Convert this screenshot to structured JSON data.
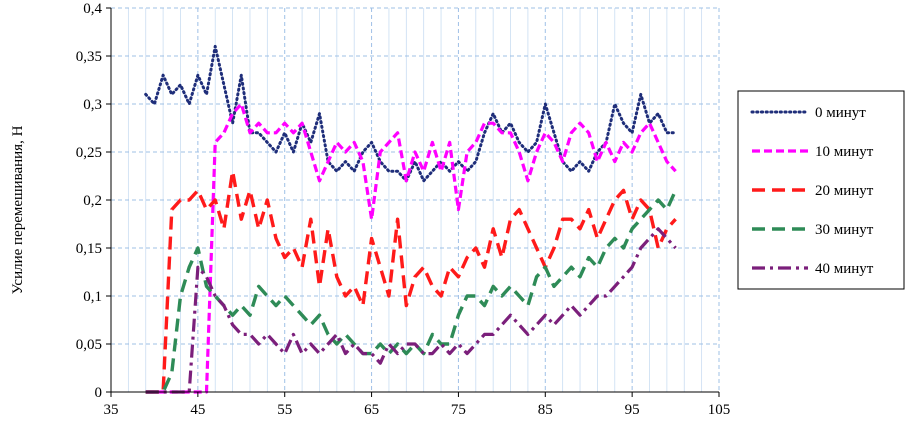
{
  "chart_data": {
    "type": "line",
    "title": "",
    "xlabel": "",
    "ylabel": "Усилие перемешивания, Н",
    "xlim": [
      35,
      105
    ],
    "ylim": [
      0,
      0.4
    ],
    "x_ticks": [
      35,
      45,
      55,
      65,
      75,
      85,
      95,
      105
    ],
    "x_tick_labels": [
      "35",
      "45",
      "55",
      "65",
      "75",
      "85",
      "95",
      "105"
    ],
    "y_ticks": [
      0,
      0.05,
      0.1,
      0.15,
      0.2,
      0.25,
      0.3,
      0.35,
      0.4
    ],
    "y_tick_labels": [
      "0",
      "0,05",
      "0,1",
      "0,15",
      "0,2",
      "0,25",
      "0,3",
      "0,35",
      "0,4"
    ],
    "grid": true,
    "legend_position": "right",
    "series": [
      {
        "name": "0 минут",
        "color": "#1F2E7A",
        "dash": "dotted",
        "x": [
          39,
          40,
          41,
          42,
          43,
          44,
          45,
          46,
          47,
          48,
          49,
          50,
          51,
          52,
          53,
          54,
          55,
          56,
          57,
          58,
          59,
          60,
          61,
          62,
          63,
          64,
          65,
          66,
          67,
          68,
          69,
          70,
          71,
          72,
          73,
          74,
          75,
          76,
          77,
          78,
          79,
          80,
          81,
          82,
          83,
          84,
          85,
          86,
          87,
          88,
          89,
          90,
          91,
          92,
          93,
          94,
          95,
          96,
          97,
          98,
          99,
          100
        ],
        "y": [
          0.31,
          0.3,
          0.33,
          0.31,
          0.32,
          0.3,
          0.33,
          0.31,
          0.36,
          0.32,
          0.28,
          0.33,
          0.27,
          0.27,
          0.26,
          0.25,
          0.27,
          0.25,
          0.28,
          0.26,
          0.29,
          0.24,
          0.23,
          0.24,
          0.23,
          0.25,
          0.26,
          0.24,
          0.23,
          0.23,
          0.22,
          0.24,
          0.22,
          0.23,
          0.24,
          0.23,
          0.24,
          0.23,
          0.24,
          0.27,
          0.29,
          0.27,
          0.28,
          0.26,
          0.25,
          0.26,
          0.3,
          0.27,
          0.24,
          0.23,
          0.24,
          0.23,
          0.25,
          0.26,
          0.3,
          0.28,
          0.27,
          0.31,
          0.28,
          0.29,
          0.27,
          0.27
        ]
      },
      {
        "name": "10 минут",
        "color": "#FF00FF",
        "dash": "dash",
        "x": [
          39,
          40,
          41,
          42,
          43,
          44,
          45,
          46,
          47,
          48,
          49,
          50,
          51,
          52,
          53,
          54,
          55,
          56,
          57,
          58,
          59,
          60,
          61,
          62,
          63,
          64,
          65,
          66,
          67,
          68,
          69,
          70,
          71,
          72,
          73,
          74,
          75,
          76,
          77,
          78,
          79,
          80,
          81,
          82,
          83,
          84,
          85,
          86,
          87,
          88,
          89,
          90,
          91,
          92,
          93,
          94,
          95,
          96,
          97,
          98,
          99,
          100
        ],
        "y": [
          0.0,
          0.0,
          0.0,
          0.0,
          0.0,
          0.0,
          0.0,
          0.0,
          0.26,
          0.27,
          0.29,
          0.3,
          0.27,
          0.28,
          0.27,
          0.27,
          0.28,
          0.27,
          0.28,
          0.25,
          0.22,
          0.24,
          0.26,
          0.25,
          0.26,
          0.24,
          0.18,
          0.25,
          0.26,
          0.27,
          0.22,
          0.25,
          0.23,
          0.26,
          0.23,
          0.26,
          0.19,
          0.25,
          0.26,
          0.28,
          0.28,
          0.27,
          0.27,
          0.25,
          0.22,
          0.25,
          0.27,
          0.26,
          0.24,
          0.27,
          0.28,
          0.27,
          0.24,
          0.26,
          0.24,
          0.26,
          0.25,
          0.27,
          0.28,
          0.26,
          0.24,
          0.23
        ]
      },
      {
        "name": "20 минут",
        "color": "#FF1A1A",
        "dash": "longdash",
        "x": [
          39,
          40,
          41,
          42,
          43,
          44,
          45,
          46,
          47,
          48,
          49,
          50,
          51,
          52,
          53,
          54,
          55,
          56,
          57,
          58,
          59,
          60,
          61,
          62,
          63,
          64,
          65,
          66,
          67,
          68,
          69,
          70,
          71,
          72,
          73,
          74,
          75,
          76,
          77,
          78,
          79,
          80,
          81,
          82,
          83,
          84,
          85,
          86,
          87,
          88,
          89,
          90,
          91,
          92,
          93,
          94,
          95,
          96,
          97,
          98,
          99,
          100
        ],
        "y": [
          0.0,
          0.0,
          0.0,
          0.19,
          0.2,
          0.2,
          0.21,
          0.19,
          0.2,
          0.17,
          0.23,
          0.18,
          0.21,
          0.17,
          0.2,
          0.16,
          0.14,
          0.15,
          0.13,
          0.18,
          0.11,
          0.17,
          0.12,
          0.1,
          0.11,
          0.09,
          0.16,
          0.13,
          0.1,
          0.18,
          0.09,
          0.12,
          0.13,
          0.11,
          0.1,
          0.13,
          0.12,
          0.14,
          0.15,
          0.13,
          0.17,
          0.14,
          0.18,
          0.19,
          0.17,
          0.15,
          0.13,
          0.15,
          0.18,
          0.18,
          0.17,
          0.19,
          0.16,
          0.18,
          0.2,
          0.21,
          0.18,
          0.2,
          0.19,
          0.15,
          0.17,
          0.18
        ]
      },
      {
        "name": "30 минут",
        "color": "#2E8B57",
        "dash": "longdash",
        "x": [
          39,
          40,
          41,
          42,
          43,
          44,
          45,
          46,
          47,
          48,
          49,
          50,
          51,
          52,
          53,
          54,
          55,
          56,
          57,
          58,
          59,
          60,
          61,
          62,
          63,
          64,
          65,
          66,
          67,
          68,
          69,
          70,
          71,
          72,
          73,
          74,
          75,
          76,
          77,
          78,
          79,
          80,
          81,
          82,
          83,
          84,
          85,
          86,
          87,
          88,
          89,
          90,
          91,
          92,
          93,
          94,
          95,
          96,
          97,
          98,
          99,
          100
        ],
        "y": [
          0.0,
          0.0,
          0.0,
          0.02,
          0.1,
          0.13,
          0.15,
          0.11,
          0.1,
          0.09,
          0.08,
          0.09,
          0.08,
          0.11,
          0.1,
          0.09,
          0.1,
          0.09,
          0.08,
          0.07,
          0.08,
          0.06,
          0.05,
          0.06,
          0.05,
          0.04,
          0.04,
          0.05,
          0.04,
          0.05,
          0.04,
          0.05,
          0.04,
          0.06,
          0.05,
          0.05,
          0.08,
          0.1,
          0.1,
          0.09,
          0.11,
          0.1,
          0.11,
          0.1,
          0.09,
          0.12,
          0.13,
          0.11,
          0.12,
          0.13,
          0.12,
          0.14,
          0.13,
          0.15,
          0.16,
          0.15,
          0.17,
          0.18,
          0.19,
          0.2,
          0.19,
          0.21
        ]
      },
      {
        "name": "40 минут",
        "color": "#7B1F7B",
        "dash": "dashdot",
        "x": [
          39,
          40,
          41,
          42,
          43,
          44,
          45,
          46,
          47,
          48,
          49,
          50,
          51,
          52,
          53,
          54,
          55,
          56,
          57,
          58,
          59,
          60,
          61,
          62,
          63,
          64,
          65,
          66,
          67,
          68,
          69,
          70,
          71,
          72,
          73,
          74,
          75,
          76,
          77,
          78,
          79,
          80,
          81,
          82,
          83,
          84,
          85,
          86,
          87,
          88,
          89,
          90,
          91,
          92,
          93,
          94,
          95,
          96,
          97,
          98,
          99,
          100
        ],
        "y": [
          0.0,
          0.0,
          0.0,
          0.0,
          0.0,
          0.0,
          0.13,
          0.12,
          0.1,
          0.09,
          0.07,
          0.06,
          0.06,
          0.05,
          0.06,
          0.05,
          0.04,
          0.06,
          0.04,
          0.05,
          0.04,
          0.05,
          0.06,
          0.04,
          0.05,
          0.04,
          0.04,
          0.03,
          0.05,
          0.04,
          0.05,
          0.05,
          0.04,
          0.04,
          0.05,
          0.04,
          0.05,
          0.04,
          0.05,
          0.06,
          0.06,
          0.07,
          0.08,
          0.07,
          0.06,
          0.07,
          0.08,
          0.07,
          0.08,
          0.09,
          0.08,
          0.09,
          0.1,
          0.1,
          0.11,
          0.12,
          0.13,
          0.15,
          0.16,
          0.17,
          0.16,
          0.15
        ]
      }
    ]
  }
}
